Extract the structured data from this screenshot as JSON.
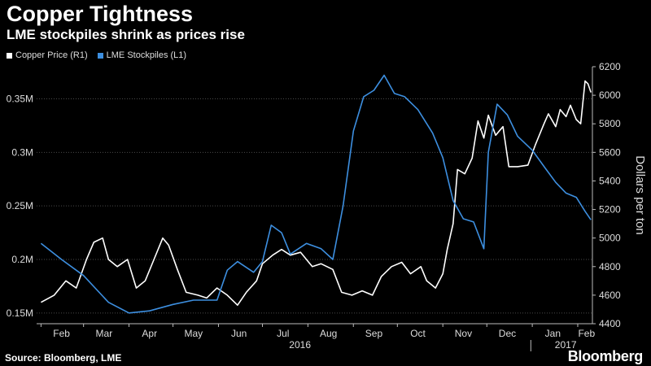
{
  "header": {
    "title": "Copper Tightness",
    "subtitle": "LME stockpiles shrink as prices rise"
  },
  "footer": {
    "source": "Source: Bloomberg, LME",
    "brand": "Bloomberg"
  },
  "colors": {
    "background": "#000000",
    "copper_price": "#ffffff",
    "stockpiles": "#3d8fe0",
    "grid": "#555555"
  },
  "chart_data": {
    "type": "line",
    "grid": true,
    "legend_placement": "top-left",
    "x_month_labels": [
      "Feb",
      "Mar",
      "Apr",
      "May",
      "Jun",
      "Jul",
      "Aug",
      "Sep",
      "Oct",
      "Nov",
      "Dec",
      "Jan",
      "Feb"
    ],
    "x_year_labels": [
      "2016",
      "2017"
    ],
    "left_axis": {
      "ticks": [
        "0.15M",
        "0.2M",
        "0.25M",
        "0.3M",
        "0.35M"
      ],
      "range": [
        140000,
        380000
      ]
    },
    "right_axis": {
      "label": "Dollars per ton",
      "ticks": [
        "4400",
        "4600",
        "4800",
        "5000",
        "5200",
        "5400",
        "5600",
        "5800",
        "6000",
        "6200"
      ],
      "range": [
        4400,
        6200
      ]
    },
    "series": [
      {
        "name": "Copper Price (R1)",
        "axis": "right",
        "color": "#ffffff",
        "points": [
          [
            "2016-02-01",
            4550
          ],
          [
            "2016-02-10",
            4600
          ],
          [
            "2016-02-18",
            4700
          ],
          [
            "2016-02-25",
            4650
          ],
          [
            "2016-03-03",
            4850
          ],
          [
            "2016-03-08",
            4970
          ],
          [
            "2016-03-14",
            5000
          ],
          [
            "2016-03-18",
            4850
          ],
          [
            "2016-03-24",
            4800
          ],
          [
            "2016-03-31",
            4850
          ],
          [
            "2016-04-06",
            4650
          ],
          [
            "2016-04-12",
            4700
          ],
          [
            "2016-04-18",
            4850
          ],
          [
            "2016-04-24",
            5000
          ],
          [
            "2016-04-28",
            4950
          ],
          [
            "2016-05-04",
            4780
          ],
          [
            "2016-05-10",
            4620
          ],
          [
            "2016-05-18",
            4600
          ],
          [
            "2016-05-24",
            4580
          ],
          [
            "2016-05-31",
            4650
          ],
          [
            "2016-06-07",
            4600
          ],
          [
            "2016-06-14",
            4530
          ],
          [
            "2016-06-20",
            4620
          ],
          [
            "2016-06-27",
            4700
          ],
          [
            "2016-07-01",
            4820
          ],
          [
            "2016-07-08",
            4880
          ],
          [
            "2016-07-14",
            4920
          ],
          [
            "2016-07-20",
            4880
          ],
          [
            "2016-07-27",
            4900
          ],
          [
            "2016-08-04",
            4800
          ],
          [
            "2016-08-10",
            4820
          ],
          [
            "2016-08-18",
            4780
          ],
          [
            "2016-08-24",
            4620
          ],
          [
            "2016-08-31",
            4600
          ],
          [
            "2016-09-07",
            4630
          ],
          [
            "2016-09-14",
            4600
          ],
          [
            "2016-09-20",
            4730
          ],
          [
            "2016-09-27",
            4800
          ],
          [
            "2016-10-04",
            4830
          ],
          [
            "2016-10-10",
            4750
          ],
          [
            "2016-10-17",
            4800
          ],
          [
            "2016-10-21",
            4700
          ],
          [
            "2016-10-27",
            4650
          ],
          [
            "2016-11-01",
            4750
          ],
          [
            "2016-11-04",
            4920
          ],
          [
            "2016-11-08",
            5100
          ],
          [
            "2016-11-11",
            5480
          ],
          [
            "2016-11-16",
            5450
          ],
          [
            "2016-11-21",
            5560
          ],
          [
            "2016-11-25",
            5820
          ],
          [
            "2016-11-29",
            5700
          ],
          [
            "2016-12-02",
            5860
          ],
          [
            "2016-12-07",
            5720
          ],
          [
            "2016-12-12",
            5780
          ],
          [
            "2016-12-16",
            5500
          ],
          [
            "2016-12-22",
            5500
          ],
          [
            "2016-12-29",
            5510
          ],
          [
            "2017-01-03",
            5650
          ],
          [
            "2017-01-09",
            5800
          ],
          [
            "2017-01-12",
            5870
          ],
          [
            "2017-01-17",
            5780
          ],
          [
            "2017-01-20",
            5900
          ],
          [
            "2017-01-24",
            5850
          ],
          [
            "2017-01-27",
            5930
          ],
          [
            "2017-01-31",
            5830
          ],
          [
            "2017-02-03",
            5800
          ],
          [
            "2017-02-06",
            6100
          ],
          [
            "2017-02-08",
            6080
          ],
          [
            "2017-02-10",
            6020
          ]
        ]
      },
      {
        "name": "LME Stockpiles (L1)",
        "axis": "left",
        "color": "#3d8fe0",
        "points": [
          [
            "2016-02-01",
            0.215
          ],
          [
            "2016-02-15",
            0.2
          ],
          [
            "2016-03-01",
            0.185
          ],
          [
            "2016-03-18",
            0.16
          ],
          [
            "2016-04-01",
            0.15
          ],
          [
            "2016-04-15",
            0.152
          ],
          [
            "2016-05-01",
            0.158
          ],
          [
            "2016-05-15",
            0.162
          ],
          [
            "2016-05-31",
            0.162
          ],
          [
            "2016-06-07",
            0.19
          ],
          [
            "2016-06-14",
            0.198
          ],
          [
            "2016-06-25",
            0.188
          ],
          [
            "2016-07-01",
            0.198
          ],
          [
            "2016-07-07",
            0.232
          ],
          [
            "2016-07-14",
            0.225
          ],
          [
            "2016-07-20",
            0.205
          ],
          [
            "2016-07-31",
            0.215
          ],
          [
            "2016-08-10",
            0.21
          ],
          [
            "2016-08-18",
            0.2
          ],
          [
            "2016-08-25",
            0.25
          ],
          [
            "2016-09-01",
            0.32
          ],
          [
            "2016-09-08",
            0.352
          ],
          [
            "2016-09-15",
            0.358
          ],
          [
            "2016-09-22",
            0.372
          ],
          [
            "2016-09-29",
            0.355
          ],
          [
            "2016-10-06",
            0.352
          ],
          [
            "2016-10-15",
            0.34
          ],
          [
            "2016-10-25",
            0.318
          ],
          [
            "2016-11-01",
            0.295
          ],
          [
            "2016-11-08",
            0.255
          ],
          [
            "2016-11-15",
            0.238
          ],
          [
            "2016-11-22",
            0.235
          ],
          [
            "2016-11-29",
            0.21
          ],
          [
            "2016-12-02",
            0.3
          ],
          [
            "2016-12-08",
            0.345
          ],
          [
            "2016-12-15",
            0.335
          ],
          [
            "2016-12-22",
            0.315
          ],
          [
            "2017-01-01",
            0.302
          ],
          [
            "2017-01-10",
            0.285
          ],
          [
            "2017-01-17",
            0.272
          ],
          [
            "2017-01-24",
            0.262
          ],
          [
            "2017-01-31",
            0.258
          ],
          [
            "2017-02-06",
            0.245
          ],
          [
            "2017-02-10",
            0.237
          ]
        ]
      }
    ]
  }
}
